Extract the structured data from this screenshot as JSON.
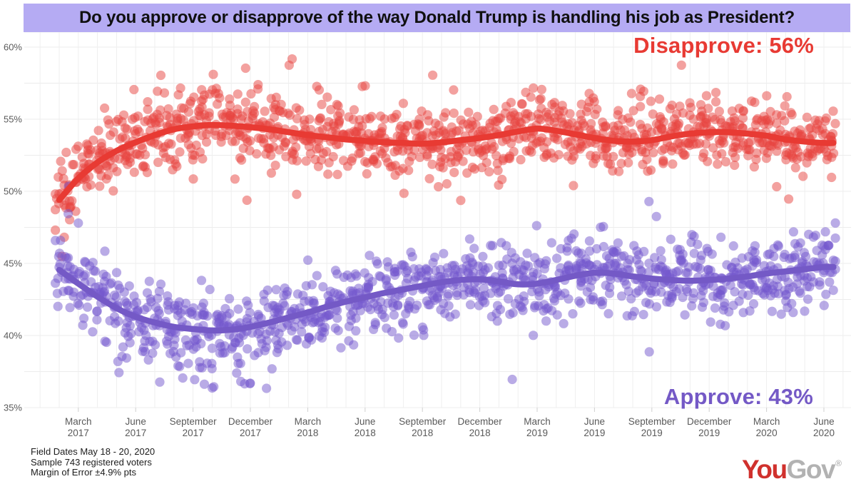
{
  "title": "Do you approve or disapprove of the way Donald Trump is handling his job as President?",
  "annotations": {
    "disapprove": "Disapprove: 56%",
    "approve": "Approve: 43%"
  },
  "footer": {
    "field_dates": "Field Dates May 18 - 20, 2020",
    "sample": "Sample 743 registered voters",
    "margin_of_error": "Margin of Error ±4.9% pts"
  },
  "logo": {
    "part1": "You",
    "part2": "Gov",
    "registered": "®"
  },
  "colors": {
    "title_bg": "#b5abf3",
    "title_text": "#101010",
    "disapprove": "#e83a33",
    "approve": "#7459c6",
    "grid": "#ececec",
    "grid_vertical": "#efefef",
    "tick": "#cfcfcf",
    "axis_text": "#5a5a5a",
    "footer_text": "#1c1c1c",
    "logo_you": "#d0312d",
    "logo_gov": "#b2b2b2"
  },
  "chart_data": {
    "type": "scatter",
    "title": "Do you approve or disapprove of the way Donald Trump is handling his job as President?",
    "xlabel": "",
    "ylabel": "",
    "grid": true,
    "legend_position": "inline-annotations",
    "y_axis": {
      "ticks": [
        60,
        55,
        50,
        45,
        40,
        35
      ],
      "tick_suffix": "%",
      "minor_step_pct": 2.5,
      "range_pct": [
        34.8,
        61.1
      ]
    },
    "x_axis": {
      "start_month": "February 2017",
      "end_month": "June 2020",
      "gridline_step_months": 1,
      "ticks": [
        {
          "m": 1,
          "month": "March",
          "year": "2017"
        },
        {
          "m": 4,
          "month": "June",
          "year": "2017"
        },
        {
          "m": 7,
          "month": "September",
          "year": "2017"
        },
        {
          "m": 10,
          "month": "December",
          "year": "2017"
        },
        {
          "m": 13,
          "month": "March",
          "year": "2018"
        },
        {
          "m": 16,
          "month": "June",
          "year": "2018"
        },
        {
          "m": 19,
          "month": "September",
          "year": "2018"
        },
        {
          "m": 22,
          "month": "December",
          "year": "2018"
        },
        {
          "m": 25,
          "month": "March",
          "year": "2019"
        },
        {
          "m": 28,
          "month": "June",
          "year": "2019"
        },
        {
          "m": 31,
          "month": "September",
          "year": "2019"
        },
        {
          "m": 34,
          "month": "December",
          "year": "2019"
        },
        {
          "m": 37,
          "month": "March",
          "year": "2020"
        },
        {
          "m": 40,
          "month": "June",
          "year": "2020"
        }
      ]
    },
    "series": [
      {
        "name": "Disapprove",
        "final_value_pct": 56,
        "line_color": "#e83a33",
        "dot_color": "#e8433f",
        "noise_std_pct": 1.2,
        "outlier_window_months": [
          4,
          11
        ],
        "outlier_prob": 0.09,
        "outlier_shift_pct": 1.9,
        "trend_monthly_pct": [
          49.4,
          50.9,
          52.0,
          52.8,
          53.4,
          53.9,
          54.3,
          54.5,
          54.6,
          54.55,
          54.45,
          54.3,
          54.1,
          53.9,
          53.75,
          53.6,
          53.5,
          53.4,
          53.35,
          53.3,
          53.4,
          53.55,
          53.7,
          53.9,
          54.15,
          54.35,
          54.2,
          53.95,
          53.7,
          53.5,
          53.45,
          53.55,
          53.8,
          54.0,
          54.1,
          54.1,
          54.0,
          53.85,
          53.6,
          53.45,
          53.35
        ]
      },
      {
        "name": "Approve",
        "final_value_pct": 43,
        "line_color": "#7459c6",
        "dot_color": "#7357cd",
        "noise_std_pct": 1.3,
        "outlier_window_months": [
          3,
          11
        ],
        "outlier_prob": 0.11,
        "outlier_shift_pct": -2.1,
        "trend_monthly_pct": [
          44.55,
          43.6,
          42.7,
          41.9,
          41.3,
          40.9,
          40.6,
          40.45,
          40.35,
          40.4,
          40.6,
          40.9,
          41.25,
          41.6,
          42.0,
          42.35,
          42.65,
          42.95,
          43.2,
          43.45,
          43.7,
          43.85,
          43.9,
          43.75,
          43.55,
          43.6,
          43.85,
          44.15,
          44.35,
          44.3,
          44.1,
          43.95,
          43.85,
          43.8,
          43.85,
          43.95,
          44.1,
          44.3,
          44.45,
          44.6,
          44.75
        ]
      }
    ],
    "scatter": {
      "seed": 20200520,
      "points_per_series": 1150,
      "x_month_range": [
        -0.2,
        40.6
      ],
      "dot_radius_px": 6.6,
      "dot_opacity": 0.5,
      "heavy_tail_prob": 0.035,
      "heavy_tail_mult": 2.1,
      "x_jitter_months": 0.6
    }
  }
}
